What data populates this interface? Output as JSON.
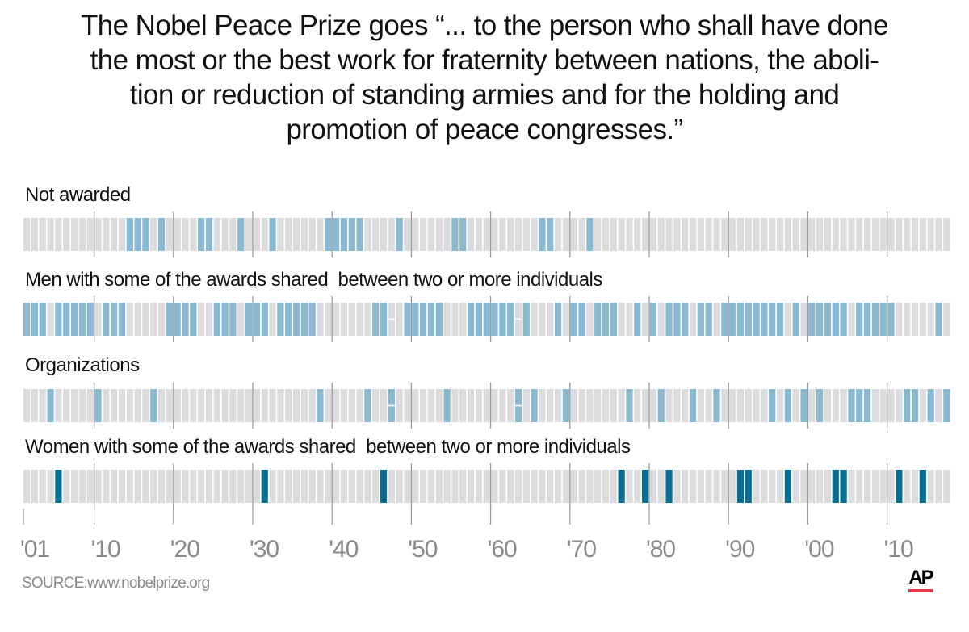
{
  "title": "The Nobel Peace Prize goes “... to the person who shall have done the most or the best work for fraternity between nations, the aboli-tion or reduction of standing armies and for the holding and promotion of peace congresses.”",
  "title_lines": [
    "The Nobel Peace Prize goes “... to the person who shall have done",
    "the most or the best work for fraternity between nations, the aboli-",
    "tion or reduction of standing armies and for the holding and",
    "promotion of peace congresses.”"
  ],
  "source": "SOURCE:www.nobelprize.org",
  "logo": "AP",
  "colors": {
    "empty": "#dcdcde",
    "light_blue": "#8ab9d2",
    "dark_teal": "#086f93",
    "gridline": "#9a9a9a",
    "logo_bar": "#e8364f"
  },
  "chart_data": {
    "type": "heatmap",
    "x_range": [
      1901,
      2017
    ],
    "tick_labels": [
      "'01",
      "'10",
      "'20",
      "'30",
      "'40",
      "'50",
      "'60",
      "'70",
      "'80",
      "'90",
      "'00",
      "'10"
    ],
    "tick_years": [
      1901,
      1910,
      1920,
      1930,
      1940,
      1950,
      1960,
      1970,
      1980,
      1990,
      2000,
      2010
    ],
    "rows": [
      {
        "label": "Not awarded",
        "color": "light_blue",
        "years": [
          1914,
          1915,
          1916,
          1918,
          1923,
          1924,
          1928,
          1932,
          1939,
          1940,
          1941,
          1942,
          1943,
          1948,
          1955,
          1956,
          1966,
          1967,
          1972
        ],
        "split_years": []
      },
      {
        "label": "Men with some of the awards shared  between two or more individuals",
        "color": "light_blue",
        "years": [
          1901,
          1902,
          1903,
          1905,
          1906,
          1907,
          1908,
          1909,
          1911,
          1912,
          1913,
          1919,
          1920,
          1921,
          1922,
          1925,
          1926,
          1927,
          1929,
          1930,
          1931,
          1933,
          1934,
          1935,
          1936,
          1937,
          1945,
          1946,
          1949,
          1950,
          1951,
          1952,
          1953,
          1957,
          1958,
          1959,
          1960,
          1961,
          1962,
          1964,
          1968,
          1970,
          1971,
          1973,
          1974,
          1975,
          1978,
          1980,
          1982,
          1983,
          1984,
          1986,
          1987,
          1989,
          1990,
          1991,
          1992,
          1993,
          1994,
          1995,
          1996,
          1998,
          2000,
          2001,
          2002,
          2003,
          2004,
          2006,
          2007,
          2008,
          2009,
          2010,
          2016
        ],
        "split_years": [
          1947,
          1963
        ]
      },
      {
        "label": "Organizations",
        "color": "light_blue",
        "years": [
          1904,
          1910,
          1917,
          1938,
          1944,
          1947,
          1954,
          1963,
          1965,
          1969,
          1977,
          1981,
          1985,
          1988,
          1995,
          1997,
          1999,
          2001,
          2005,
          2006,
          2007,
          2012,
          2013,
          2015,
          2017
        ],
        "split_years": [
          1947,
          1963
        ]
      },
      {
        "label": "Women with some of the awards shared  between two or more individuals",
        "color": "dark_teal",
        "years": [
          1905,
          1931,
          1946,
          1976,
          1979,
          1982,
          1991,
          1992,
          1997,
          2003,
          2004,
          2011,
          2014
        ],
        "split_years": []
      }
    ]
  }
}
